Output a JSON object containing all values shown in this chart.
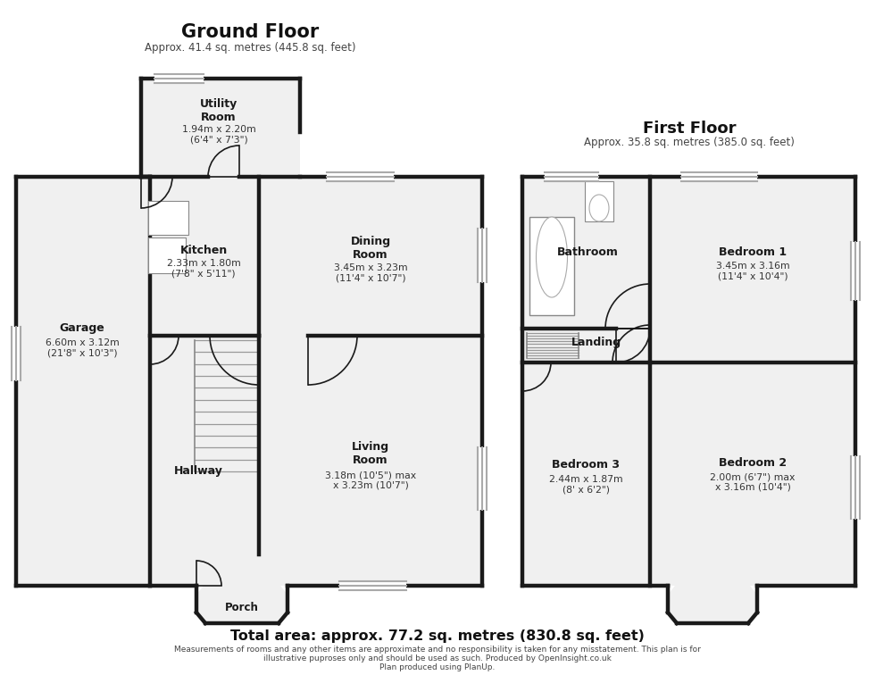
{
  "title": "Ground Floor",
  "title_sub": "Approx. 41.4 sq. metres (445.8 sq. feet)",
  "title2": "First Floor",
  "title2_sub": "Approx. 35.8 sq. metres (385.0 sq. feet)",
  "footer1": "Total area: approx. 77.2 sq. metres (830.8 sq. feet)",
  "footer2": "Measurements of rooms and any other items are approximate and no responsibility is taken for any misstatement. This plan is for",
  "footer3": "illustrative puproses only and should be used as such. Produced by OpenInsight.co.uk",
  "footer4": "Plan produced using PlanUp.",
  "bg_color": "#ffffff",
  "wall_color": "#1a1a1a",
  "fill_color": "#f0f0f0",
  "window_color": "#aaaaaa",
  "wall_lw": 3.2
}
